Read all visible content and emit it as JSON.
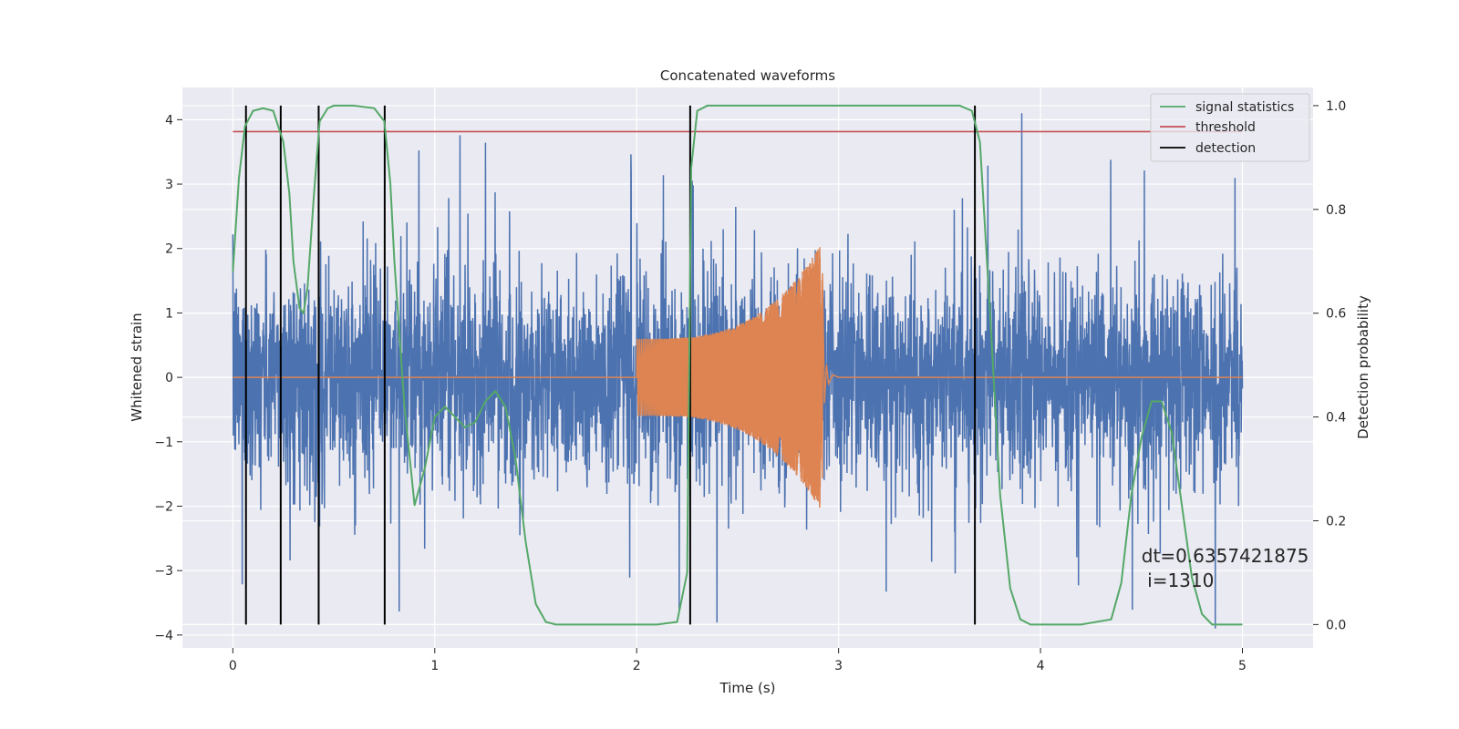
{
  "chart_data": {
    "type": "line",
    "title": "Concatenated waveforms",
    "xlabel": "Time (s)",
    "ylabel": "Whitened strain",
    "y2label": "Detection probability",
    "xlim": [
      -0.25,
      5.35
    ],
    "ylim": [
      -4.2,
      4.5
    ],
    "y2lim": [
      -0.045,
      1.035
    ],
    "xticks": [
      0,
      1,
      2,
      3,
      4,
      5
    ],
    "yticks": [
      -4,
      -3,
      -2,
      -1,
      0,
      1,
      2,
      3,
      4
    ],
    "y2ticks": [
      0.0,
      0.2,
      0.4,
      0.6,
      0.8,
      1.0
    ],
    "y2ticklabels": [
      "0.0",
      "0.2",
      "0.4",
      "0.6",
      "0.8",
      "1.0"
    ],
    "grid": true,
    "legend_position": "top-right",
    "colors": {
      "noise": "#4c72b0",
      "injection": "#dd8452",
      "signal_statistics": "#55a868",
      "threshold": "#c44e52",
      "detection": "#000000",
      "plot_background": "#eaeaf2",
      "grid": "#ffffff"
    },
    "series": [
      {
        "key": "noise",
        "axis": "left",
        "note": "whitened detector noise, approx. Gaussian, sigma ~0.8, peaks to about +/-4",
        "x_range": [
          0,
          5
        ],
        "sigma": 0.8
      },
      {
        "key": "injection",
        "axis": "left",
        "note": "chirp waveform injected between t=2.0 and t=2.92 s",
        "x_range": [
          2.0,
          2.92
        ],
        "amplitude_start": 0.6,
        "amplitude_peak": 2.1
      },
      {
        "key": "signal_statistics",
        "name": "signal statistics",
        "axis": "right",
        "x": [
          0,
          0.03,
          0.06,
          0.1,
          0.15,
          0.2,
          0.25,
          0.28,
          0.3,
          0.33,
          0.35,
          0.37,
          0.4,
          0.43,
          0.47,
          0.5,
          0.6,
          0.7,
          0.75,
          0.78,
          0.8,
          0.85,
          0.9,
          0.95,
          1.0,
          1.05,
          1.1,
          1.15,
          1.2,
          1.25,
          1.3,
          1.35,
          1.4,
          1.45,
          1.5,
          1.55,
          1.6,
          1.7,
          1.8,
          1.9,
          2.0,
          2.1,
          2.2,
          2.25,
          2.27,
          2.3,
          2.35,
          2.5,
          3.0,
          3.5,
          3.6,
          3.66,
          3.7,
          3.75,
          3.8,
          3.85,
          3.9,
          3.95,
          4.0,
          4.2,
          4.35,
          4.4,
          4.45,
          4.5,
          4.55,
          4.6,
          4.65,
          4.7,
          4.75,
          4.8,
          4.85,
          4.9,
          5.0
        ],
        "values": [
          0.68,
          0.86,
          0.96,
          0.99,
          0.995,
          0.99,
          0.93,
          0.83,
          0.7,
          0.61,
          0.6,
          0.65,
          0.82,
          0.97,
          0.995,
          1.0,
          1.0,
          0.995,
          0.97,
          0.85,
          0.7,
          0.42,
          0.23,
          0.3,
          0.4,
          0.42,
          0.4,
          0.38,
          0.39,
          0.43,
          0.45,
          0.42,
          0.32,
          0.16,
          0.04,
          0.005,
          0.0,
          0.0,
          0.0,
          0.0,
          0.0,
          0.0,
          0.005,
          0.1,
          0.88,
          0.99,
          1.0,
          1.0,
          1.0,
          1.0,
          1.0,
          0.99,
          0.93,
          0.6,
          0.25,
          0.07,
          0.01,
          0.0,
          0.0,
          0.0,
          0.01,
          0.08,
          0.25,
          0.36,
          0.43,
          0.43,
          0.37,
          0.23,
          0.09,
          0.02,
          0.0,
          0.0,
          0.0
        ]
      },
      {
        "key": "threshold",
        "name": "threshold",
        "axis": "right",
        "x": [
          0,
          5
        ],
        "values": [
          0.95,
          0.95
        ]
      },
      {
        "key": "detection",
        "name": "detection",
        "axis": "right",
        "x": [
          0.065,
          0.237,
          0.425,
          0.752,
          2.265,
          3.675
        ],
        "values": [
          1.0,
          1.0,
          1.0,
          1.0,
          1.0,
          1.0
        ]
      }
    ],
    "annotation": {
      "line1": "dt=0.6357421875",
      "line2": " i=1310",
      "x": 4.5,
      "y": 0.12
    },
    "legend": [
      {
        "label": "signal statistics",
        "color": "#55a868"
      },
      {
        "label": "threshold",
        "color": "#c44e52"
      },
      {
        "label": "detection",
        "color": "#000000"
      }
    ]
  }
}
